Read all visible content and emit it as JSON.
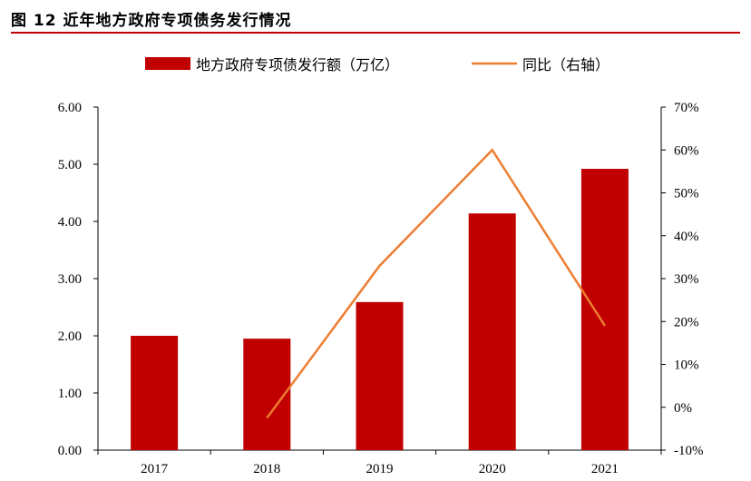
{
  "chart_title": "图 12 近年地方政府专项债务发行情况",
  "chart_data": {
    "type": "bar",
    "title": "图 12 近年地方政府专项债务发行情况",
    "categories": [
      "2017",
      "2018",
      "2019",
      "2020",
      "2021"
    ],
    "series": [
      {
        "name": "地方政府专项债发行额（万亿）",
        "type": "bar",
        "axis": "left",
        "color": "#c00000",
        "values": [
          2.0,
          1.95,
          2.59,
          4.14,
          4.92
        ]
      },
      {
        "name": "同比（右轴）",
        "type": "line",
        "axis": "right",
        "color": "#ed7d31",
        "values": [
          null,
          -2.5,
          33.0,
          60.0,
          19.0
        ]
      }
    ],
    "left_axis": {
      "min": 0,
      "max": 6,
      "ticks": [
        "0.00",
        "1.00",
        "2.00",
        "3.00",
        "4.00",
        "5.00",
        "6.00"
      ]
    },
    "right_axis": {
      "min": -10,
      "max": 70,
      "ticks": [
        "-10%",
        "0%",
        "10%",
        "20%",
        "30%",
        "40%",
        "50%",
        "60%",
        "70%"
      ]
    },
    "legend_position": "top"
  }
}
